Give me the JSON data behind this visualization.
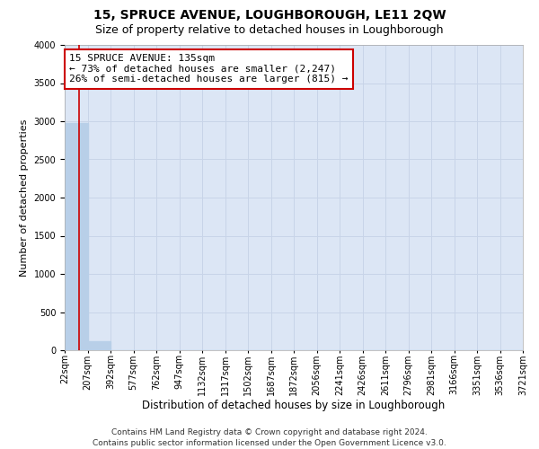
{
  "title": "15, SPRUCE AVENUE, LOUGHBOROUGH, LE11 2QW",
  "subtitle": "Size of property relative to detached houses in Loughborough",
  "xlabel": "Distribution of detached houses by size in Loughborough",
  "ylabel": "Number of detached properties",
  "bin_labels": [
    "22sqm",
    "207sqm",
    "392sqm",
    "577sqm",
    "762sqm",
    "947sqm",
    "1132sqm",
    "1317sqm",
    "1502sqm",
    "1687sqm",
    "1872sqm",
    "2056sqm",
    "2241sqm",
    "2426sqm",
    "2611sqm",
    "2796sqm",
    "2981sqm",
    "3166sqm",
    "3351sqm",
    "3536sqm",
    "3721sqm"
  ],
  "bar_values": [
    2980,
    120,
    0,
    0,
    0,
    0,
    0,
    0,
    0,
    0,
    0,
    0,
    0,
    0,
    0,
    0,
    0,
    0,
    0,
    0
  ],
  "bar_color": "#b8cfe8",
  "bar_edge_color": "#b8cfe8",
  "grid_color": "#c8d4e8",
  "background_color": "#dce6f5",
  "vline_color": "#cc0000",
  "ylim": [
    0,
    4000
  ],
  "yticks": [
    0,
    500,
    1000,
    1500,
    2000,
    2500,
    3000,
    3500,
    4000
  ],
  "annotation_line1": "15 SPRUCE AVENUE: 135sqm",
  "annotation_line2": "← 73% of detached houses are smaller (2,247)",
  "annotation_line3": "26% of semi-detached houses are larger (815) →",
  "annotation_box_color": "#ffffff",
  "annotation_border_color": "#cc0000",
  "footer_text": "Contains HM Land Registry data © Crown copyright and database right 2024.\nContains public sector information licensed under the Open Government Licence v3.0.",
  "title_fontsize": 10,
  "subtitle_fontsize": 9,
  "xlabel_fontsize": 8.5,
  "ylabel_fontsize": 8,
  "tick_fontsize": 7,
  "annotation_fontsize": 8,
  "footer_fontsize": 6.5,
  "fig_width": 6.0,
  "fig_height": 5.0,
  "dpi": 100
}
